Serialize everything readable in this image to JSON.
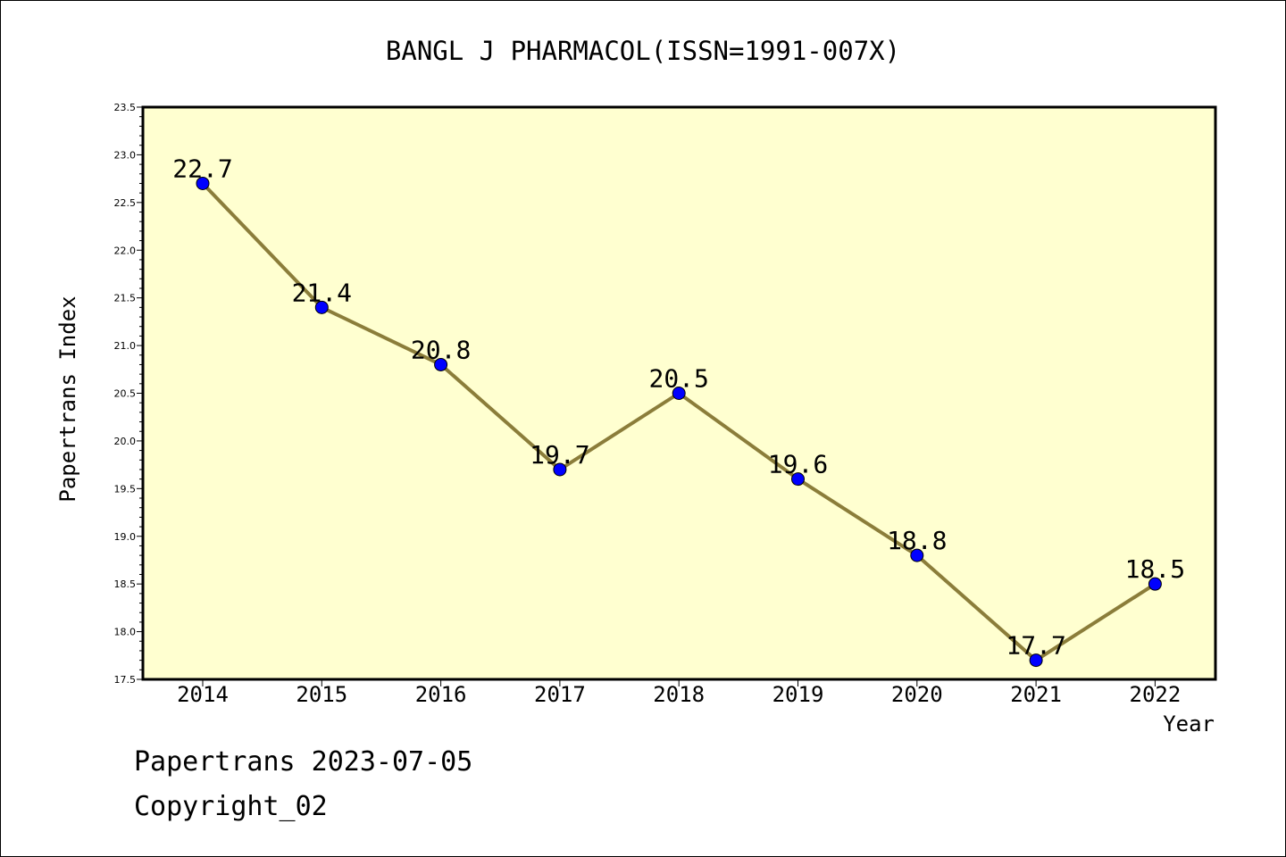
{
  "chart_data": {
    "type": "line",
    "title": "BANGL J PHARMACOL(ISSN=1991-007X)",
    "xlabel": "Year",
    "ylabel": "Papertrans Index",
    "categories": [
      "2014",
      "2015",
      "2016",
      "2017",
      "2018",
      "2019",
      "2020",
      "2021",
      "2022"
    ],
    "series": [
      {
        "values": [
          22.7,
          21.4,
          20.8,
          19.7,
          20.5,
          19.6,
          18.8,
          17.7,
          18.5
        ]
      }
    ],
    "data_labels": [
      "22.7",
      "21.4",
      "20.8",
      "19.7",
      "20.5",
      "19.6",
      "18.8",
      "17.7",
      "18.5"
    ],
    "ylim": [
      17.5,
      23.5
    ],
    "y_ticks": [
      "17.5",
      "18.0",
      "18.5",
      "19.0",
      "19.5",
      "20.0",
      "20.5",
      "21.0",
      "21.5",
      "22.0",
      "22.5",
      "23.0",
      "23.5"
    ],
    "grid": false,
    "colors": {
      "plot_background": "#ffffd0",
      "line": "#8b7d3a",
      "marker": "#0000ff"
    }
  },
  "footer": {
    "line1": "Papertrans 2023-07-05",
    "line2": "Copyright_02"
  }
}
